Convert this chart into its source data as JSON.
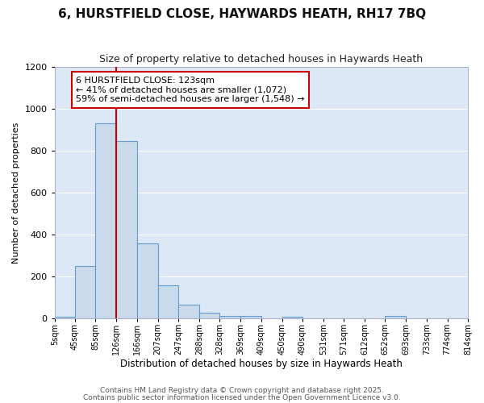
{
  "title": "6, HURSTFIELD CLOSE, HAYWARDS HEATH, RH17 7BQ",
  "subtitle": "Size of property relative to detached houses in Haywards Heath",
  "xlabel": "Distribution of detached houses by size in Haywards Heath",
  "ylabel": "Number of detached properties",
  "bin_edges": [
    5,
    45,
    85,
    126,
    166,
    207,
    247,
    288,
    328,
    369,
    409,
    450,
    490,
    531,
    571,
    612,
    652,
    693,
    733,
    774,
    814
  ],
  "bin_heights": [
    8,
    250,
    930,
    845,
    358,
    160,
    65,
    30,
    13,
    13,
    3,
    8,
    0,
    0,
    0,
    0,
    13,
    0,
    0,
    0
  ],
  "bar_color": "#c9daea",
  "bar_edge_color": "#6699cc",
  "vline_x": 126,
  "vline_color": "#cc0000",
  "annotation_line1": "6 HURSTFIELD CLOSE: 123sqm",
  "annotation_line2": "← 41% of detached houses are smaller (1,072)",
  "annotation_line3": "59% of semi-detached houses are larger (1,548) →",
  "annotation_box_color": "#ffffff",
  "annotation_box_edge_color": "#cc0000",
  "ylim": [
    0,
    1200
  ],
  "yticks": [
    0,
    200,
    400,
    600,
    800,
    1000,
    1200
  ],
  "tick_labels": [
    "5sqm",
    "45sqm",
    "85sqm",
    "126sqm",
    "166sqm",
    "207sqm",
    "247sqm",
    "288sqm",
    "328sqm",
    "369sqm",
    "409sqm",
    "450sqm",
    "490sqm",
    "531sqm",
    "571sqm",
    "612sqm",
    "652sqm",
    "693sqm",
    "733sqm",
    "774sqm",
    "814sqm"
  ],
  "fig_background_color": "#ffffff",
  "plot_background_color": "#dce8f5",
  "grid_color": "#ffffff",
  "footer1": "Contains HM Land Registry data © Crown copyright and database right 2025.",
  "footer2": "Contains public sector information licensed under the Open Government Licence v3.0.",
  "title_fontsize": 11,
  "subtitle_fontsize": 9,
  "ylabel_fontsize": 8,
  "xlabel_fontsize": 8.5,
  "tick_fontsize": 7,
  "footer_fontsize": 6.5,
  "annotation_fontsize": 8
}
